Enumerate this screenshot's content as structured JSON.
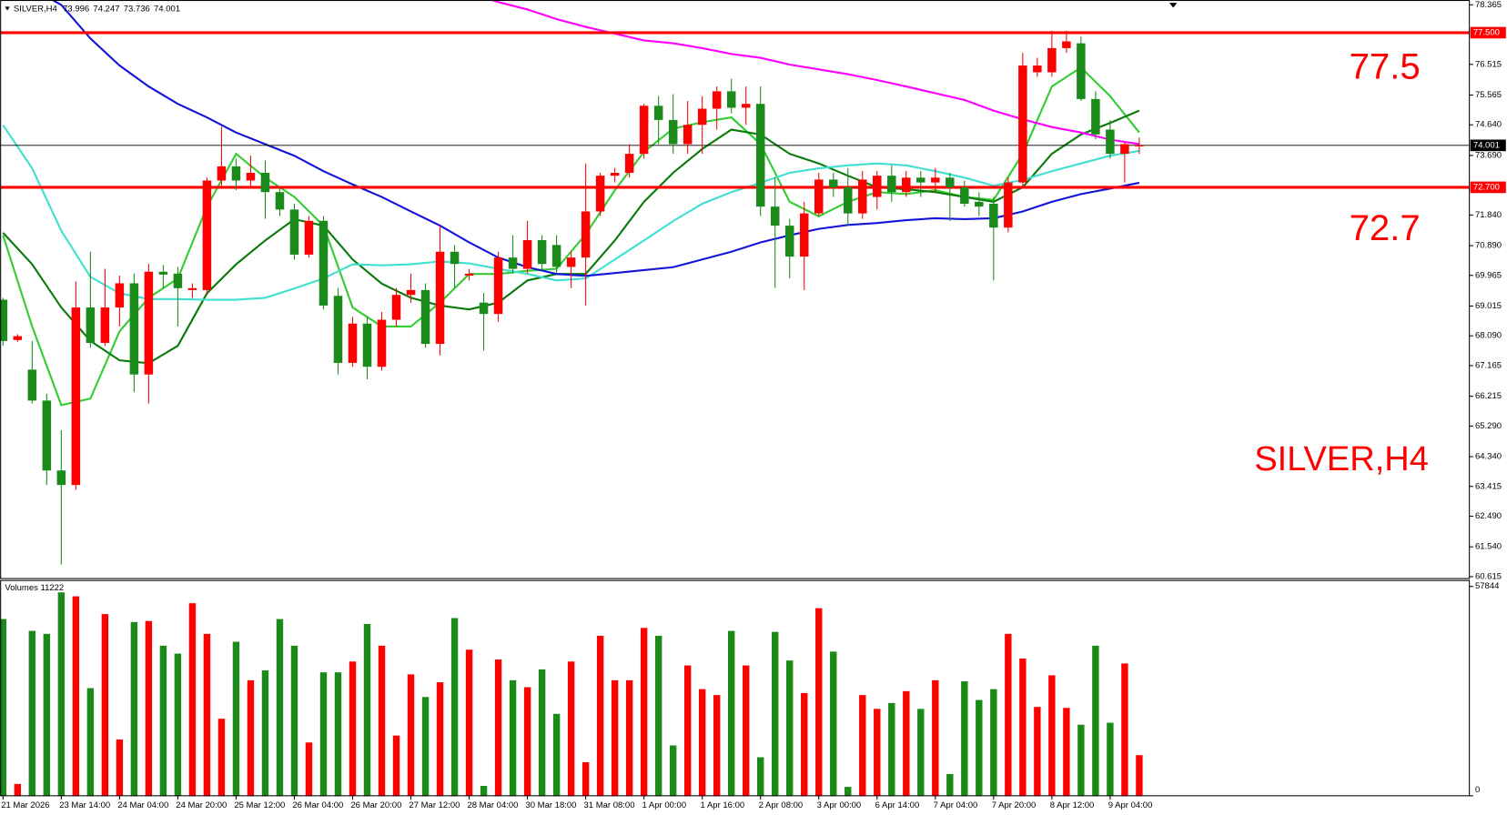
{
  "chart_data": {
    "type": "candlestick",
    "header": {
      "symbol": "SILVER,H4",
      "prices": [
        73.996,
        74.247,
        73.736,
        74.001
      ]
    },
    "categories": [
      "21 Mar 2026",
      null,
      null,
      null,
      "23 Mar 14:00",
      null,
      null,
      null,
      "24 Mar 04:00",
      null,
      null,
      null,
      "24 Mar 20:00",
      null,
      null,
      null,
      "25 Mar 12:00",
      null,
      null,
      null,
      "26 Mar 04:00",
      null,
      null,
      null,
      "26 Mar 20:00",
      null,
      null,
      null,
      "27 Mar 12:00",
      null,
      null,
      null,
      "28 Mar 04:00",
      null,
      null,
      null,
      "30 Mar 18:00",
      null,
      null,
      null,
      "31 Mar 08:00",
      null,
      null,
      null,
      "1 Apr 00:00",
      null,
      null,
      null,
      "1 Apr 16:00",
      null,
      null,
      null,
      "2 Apr 08:00",
      null,
      null,
      null,
      "3 Apr 00:00",
      null,
      null,
      null,
      "6 Apr 14:00",
      null,
      null,
      null,
      "7 Apr 04:00",
      null,
      null,
      null,
      "7 Apr 20:00",
      null,
      null,
      null,
      "8 Apr 12:00",
      null,
      null,
      null,
      "9 Apr 04:00",
      null,
      null
    ],
    "open": [
      69.21,
      67.96,
      67.04,
      66.08,
      63.91,
      63.46,
      68.97,
      67.87,
      68.97,
      69.72,
      66.89,
      70.08,
      70.02,
      69.51,
      69.51,
      72.91,
      73.35,
      72.91,
      73.15,
      72.55,
      72.01,
      70.61,
      71.66,
      69.33,
      67.25,
      68.47,
      67.13,
      68.59,
      69.36,
      69.51,
      67.84,
      70.7,
      69.96,
      69.12,
      68.77,
      70.52,
      70.17,
      71.06,
      70.91,
      70.23,
      70.52,
      71.95,
      73.06,
      73.15,
      73.74,
      75.23,
      74.79,
      74.04,
      74.64,
      75.14,
      75.68,
      75.17,
      75.29,
      72.1,
      71.51,
      70.55,
      71.89,
      72.94,
      72.7,
      71.89,
      72.4,
      73.06,
      72.55,
      73.0,
      72.85,
      73.0,
      72.7,
      72.25,
      72.19,
      71.45,
      72.85,
      76.27,
      76.27,
      77.02,
      77.17,
      75.44,
      74.49,
      73.74,
      73.996
    ],
    "high": [
      69.27,
      68.14,
      67.93,
      66.29,
      65.16,
      69.78,
      70.7,
      70.17,
      69.96,
      70.02,
      70.32,
      70.29,
      70.23,
      69.72,
      73.0,
      74.58,
      73.59,
      73.68,
      73.53,
      72.7,
      72.19,
      71.81,
      71.81,
      69.57,
      68.68,
      68.68,
      68.83,
      69.57,
      70.02,
      69.72,
      71.51,
      70.91,
      70.17,
      69.42,
      70.7,
      71.21,
      71.66,
      71.21,
      71.21,
      70.7,
      73.44,
      73.15,
      73.3,
      74.04,
      75.29,
      75.53,
      75.59,
      75.38,
      75.53,
      75.83,
      76.07,
      75.83,
      75.83,
      73.0,
      71.72,
      72.25,
      73.15,
      73.15,
      73.3,
      73.21,
      73.21,
      73.38,
      73.21,
      73.21,
      73.3,
      73.15,
      72.91,
      72.55,
      72.4,
      73.0,
      76.87,
      76.72,
      77.56,
      77.56,
      77.38,
      75.68,
      74.79,
      74.1,
      74.247
    ],
    "low": [
      67.78,
      67.9,
      65.99,
      63.46,
      60.99,
      63.31,
      67.72,
      67.78,
      68.38,
      66.35,
      65.99,
      69.57,
      68.38,
      69.27,
      69.36,
      72.7,
      72.61,
      72.7,
      71.72,
      71.81,
      70.46,
      70.52,
      68.91,
      66.89,
      67.13,
      66.74,
      67.01,
      68.38,
      69.12,
      67.72,
      67.48,
      69.57,
      69.81,
      67.63,
      68.53,
      70.02,
      70.02,
      70.11,
      70.02,
      69.57,
      69.03,
      71.81,
      72.85,
      73.0,
      73.59,
      74.04,
      73.74,
      73.74,
      73.74,
      74.49,
      74.99,
      74.64,
      71.81,
      69.57,
      69.87,
      69.51,
      71.81,
      72.4,
      71.51,
      71.72,
      72.01,
      72.25,
      72.4,
      72.4,
      72.55,
      71.66,
      72.1,
      71.81,
      69.81,
      71.3,
      72.7,
      76.13,
      76.13,
      76.87,
      75.38,
      74.19,
      73.59,
      72.85,
      73.736
    ],
    "close": [
      67.93,
      68.08,
      66.08,
      63.91,
      63.46,
      68.97,
      67.87,
      68.97,
      69.72,
      66.89,
      70.08,
      69.99,
      69.57,
      69.57,
      72.91,
      73.35,
      72.91,
      73.15,
      72.55,
      72.01,
      70.61,
      71.66,
      69.03,
      67.25,
      68.47,
      67.13,
      68.59,
      69.36,
      69.51,
      67.84,
      70.7,
      70.32,
      70.02,
      68.77,
      70.52,
      70.17,
      71.06,
      70.32,
      70.23,
      70.52,
      71.95,
      73.06,
      73.15,
      73.74,
      75.23,
      74.79,
      74.04,
      74.64,
      75.14,
      75.68,
      75.17,
      75.29,
      72.1,
      71.51,
      70.55,
      71.89,
      72.94,
      72.7,
      71.89,
      72.94,
      73.06,
      72.55,
      73.0,
      72.85,
      73.0,
      72.7,
      72.19,
      72.1,
      71.45,
      72.85,
      76.48,
      76.48,
      77.02,
      77.23,
      75.44,
      74.34,
      73.74,
      74.04,
      74.001
    ],
    "up_color": "#ff0000",
    "down_color": "#1a8a1a",
    "ylim": [
      60.555,
      78.514
    ],
    "yticks": [
      78.365,
      76.515,
      75.565,
      {
        "value": 74.64,
        "label": "74.640"
      },
      {
        "value": 73.69,
        "label": "73.690"
      },
      {
        "value": 71.84,
        "label": "71.840"
      },
      {
        "value": 70.89,
        "label": "70.890"
      },
      69.965,
      69.015,
      {
        "value": 68.09,
        "label": "68.090"
      },
      67.165,
      66.215,
      {
        "value": 65.29,
        "label": "65.290"
      },
      {
        "value": 64.34,
        "label": "64.340"
      },
      63.415,
      {
        "value": 62.49,
        "label": "62.490"
      },
      {
        "value": 61.54,
        "label": "61.540"
      },
      60.615
    ],
    "grid": false,
    "hlines": [
      {
        "value": 77.5,
        "label": "77.500",
        "color": "#ff0000"
      },
      {
        "value": 74.001,
        "label": "74.001",
        "color": "#000000"
      },
      {
        "value": 72.7,
        "label": "72.700",
        "color": "#ff0000"
      }
    ],
    "moving_averages": [
      {
        "color": "#33cc33",
        "x": [
          0,
          2,
          4,
          6,
          8,
          10,
          12,
          14,
          16,
          18,
          20,
          22,
          24,
          26,
          28,
          30,
          32,
          34,
          36,
          38,
          40,
          42,
          44,
          46,
          48,
          50,
          52,
          54,
          56,
          58,
          60,
          62,
          64,
          66,
          68,
          70,
          72,
          74,
          76,
          78
        ],
        "values": [
          71.21,
          68.38,
          65.94,
          66.14,
          68.23,
          69.27,
          69.87,
          72.1,
          73.74,
          73.0,
          72.4,
          71.51,
          68.97,
          68.38,
          68.38,
          69.12,
          70.01,
          70.01,
          70.11,
          70.17,
          71.24,
          72.61,
          73.8,
          74.52,
          74.72,
          74.87,
          74.04,
          72.25,
          71.8,
          72.25,
          72.55,
          72.49,
          72.61,
          72.4,
          72.31,
          73.74,
          75.83,
          76.42,
          75.53,
          74.4
        ]
      },
      {
        "color": "#0a7a0a",
        "x": [
          0,
          2,
          4,
          6,
          8,
          10,
          12,
          14,
          16,
          18,
          20,
          22,
          24,
          26,
          28,
          30,
          32,
          34,
          36,
          38,
          40,
          42,
          44,
          46,
          48,
          50,
          52,
          54,
          56,
          58,
          60,
          62,
          64,
          66,
          68,
          70,
          72,
          74,
          76,
          78
        ],
        "values": [
          71.29,
          70.31,
          68.97,
          67.93,
          67.33,
          67.24,
          67.78,
          69.41,
          70.31,
          71.05,
          71.71,
          71.51,
          70.46,
          69.71,
          69.27,
          69.03,
          68.91,
          69.12,
          69.81,
          70.01,
          70.01,
          71.05,
          72.25,
          73.15,
          73.89,
          74.49,
          74.34,
          73.74,
          73.44,
          73.06,
          72.7,
          72.64,
          72.55,
          72.4,
          72.25,
          72.7,
          73.74,
          74.34,
          74.7,
          75.08
        ]
      },
      {
        "color": "#40e0d0",
        "x": [
          0,
          2,
          4,
          6,
          8,
          10,
          12,
          14,
          16,
          18,
          20,
          22,
          24,
          26,
          28,
          30,
          32,
          34,
          36,
          38,
          40,
          42,
          44,
          46,
          48,
          50,
          52,
          54,
          56,
          58,
          60,
          62,
          64,
          66,
          68,
          70,
          72,
          74,
          76,
          78
        ],
        "values": [
          74.63,
          73.29,
          71.35,
          69.92,
          69.41,
          69.23,
          69.23,
          69.21,
          69.21,
          69.27,
          69.56,
          69.87,
          70.31,
          70.28,
          70.31,
          70.4,
          70.34,
          70.17,
          70.01,
          69.81,
          69.87,
          70.46,
          71.05,
          71.65,
          72.19,
          72.55,
          72.84,
          73.15,
          73.29,
          73.38,
          73.44,
          73.38,
          73.2,
          73.0,
          72.75,
          72.93,
          73.2,
          73.44,
          73.68,
          73.83
        ]
      },
      {
        "color": "#1414d8",
        "x": [
          0,
          2,
          4,
          6,
          8,
          10,
          12,
          14,
          16,
          18,
          20,
          22,
          24,
          26,
          28,
          30,
          32,
          34,
          36,
          38,
          40,
          42,
          44,
          46,
          48,
          50,
          52,
          54,
          56,
          58,
          60,
          62,
          64,
          66,
          68,
          70,
          72,
          74,
          76,
          78
        ],
        "values": [
          79.35,
          78.87,
          78.36,
          77.32,
          76.48,
          75.83,
          75.29,
          74.87,
          74.4,
          74.04,
          73.68,
          73.2,
          72.79,
          72.4,
          71.95,
          71.51,
          70.99,
          70.52,
          70.22,
          70.01,
          69.95,
          70.04,
          70.13,
          70.22,
          70.46,
          70.7,
          70.99,
          71.21,
          71.41,
          71.53,
          71.59,
          71.68,
          71.74,
          71.71,
          71.74,
          71.95,
          72.25,
          72.49,
          72.66,
          72.84
        ]
      },
      {
        "color": "#ff00ff",
        "x": [
          32,
          34,
          36,
          38,
          40,
          42,
          44,
          46,
          48,
          50,
          52,
          54,
          56,
          58,
          60,
          62,
          64,
          66,
          68,
          70,
          72,
          74,
          76,
          78
        ],
        "values": [
          78.75,
          78.45,
          78.22,
          77.92,
          77.68,
          77.47,
          77.26,
          77.17,
          77.02,
          76.84,
          76.72,
          76.51,
          76.36,
          76.21,
          76.03,
          75.83,
          75.62,
          75.41,
          75.08,
          74.81,
          74.57,
          74.4,
          74.18,
          74.04
        ]
      }
    ],
    "annotations": [
      "77.5",
      "72.7",
      "SILVER,H4"
    ],
    "annotation_color": "#ff0000",
    "volume": {
      "label": "Volumes 11222",
      "values": [
        48830,
        3270,
        45560,
        44740,
        56200,
        55110,
        29740,
        50200,
        15550,
        48010,
        48290,
        41470,
        39280,
        53200,
        44740,
        21280,
        42560,
        31920,
        34650,
        48830,
        41470,
        14730,
        34100,
        34100,
        37100,
        47470,
        41470,
        16640,
        33550,
        27280,
        31370,
        49100,
        40370,
        2730,
        37650,
        31920,
        30010,
        34920,
        22640,
        37100,
        9280,
        44190,
        31920,
        31920,
        46380,
        44190,
        13910,
        36010,
        29460,
        27830,
        45560,
        36010,
        10640,
        45280,
        37370,
        28370,
        51830,
        39830,
        2460,
        27830,
        24010,
        25640,
        28920,
        24010,
        31920,
        6000,
        31640,
        26460,
        29460,
        44740,
        37920,
        24550,
        33280,
        24280,
        19640,
        41470,
        20190,
        36560,
        11222
      ],
      "ylim": [
        0,
        59480
      ],
      "yticks": [
        57844,
        0
      ]
    }
  }
}
